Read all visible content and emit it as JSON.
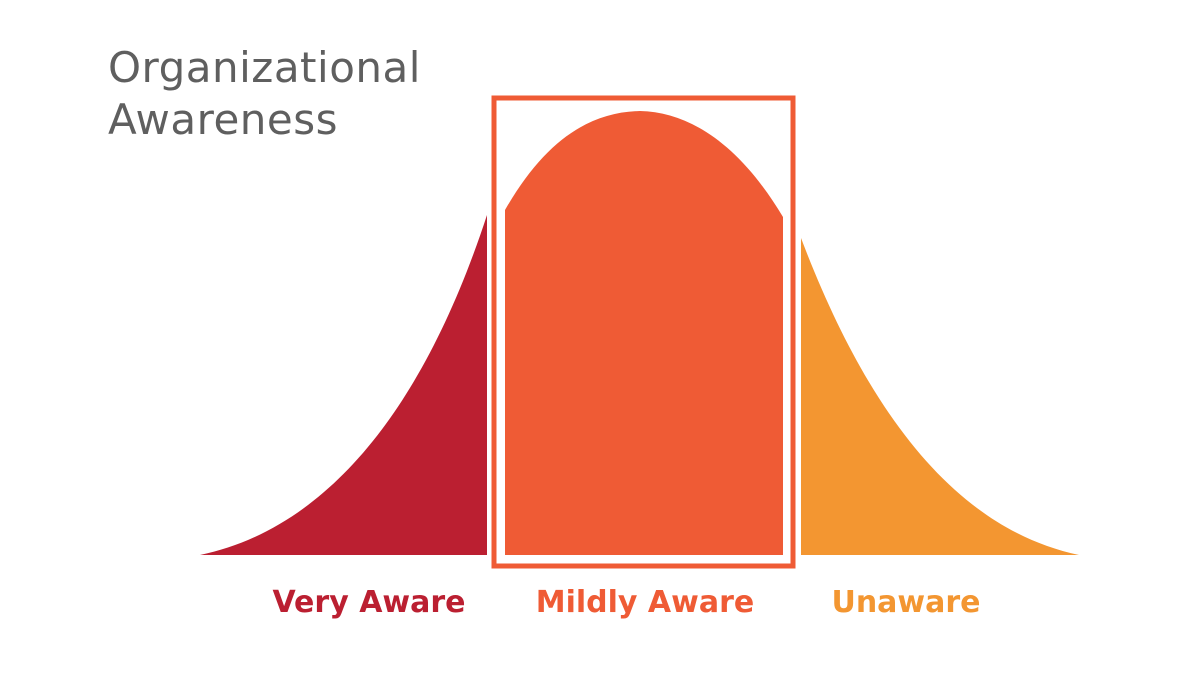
{
  "title": {
    "line1": "Organizational",
    "line2": "Awareness"
  },
  "segments": [
    {
      "label": "Very Aware",
      "color": "#bb1f31"
    },
    {
      "label": "Mildly Aware",
      "color": "#ef5b35"
    },
    {
      "label": "Unaware",
      "color": "#f39631"
    }
  ],
  "highlight": {
    "segment": "Mildly Aware",
    "outline_color": "#ef5b35"
  },
  "colors": {
    "title_text": "#5f5f5f",
    "background": "#ffffff"
  }
}
